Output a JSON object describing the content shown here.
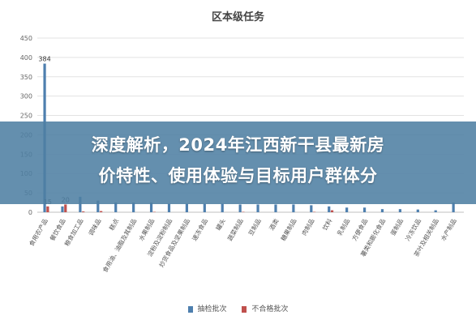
{
  "overlay": {
    "line1": "深度解析，2024年江西新干县最新房",
    "line2": "价特性、使用体验与目标用户群体分"
  },
  "colors": {
    "series1": "#4e7fae",
    "series2": "#c0504d",
    "overlay": "#4e7fa3"
  },
  "chart_data": {
    "type": "bar",
    "title": "区本级任务",
    "ylim": [
      0,
      450
    ],
    "yticks": [
      0,
      50,
      100,
      150,
      200,
      250,
      300,
      350,
      400,
      450
    ],
    "grid": true,
    "legend_position": "bottom",
    "categories": [
      "食用农产品",
      "餐饮食品",
      "粮食加工品",
      "调味品",
      "糕点",
      "食用油、油脂及其制品",
      "水果制品",
      "淀粉及淀粉制品",
      "炒货食品及坚果制品",
      "速冻食品",
      "罐头",
      "蔬菜制品",
      "豆制品",
      "酒类",
      "糖果制品",
      "肉制品",
      "饮料",
      "乳制品",
      "方便食品",
      "薯类和膨化食品",
      "蛋制品",
      "冷冻饮品",
      "茶叶及相关制品",
      "水产制品"
    ],
    "series": [
      {
        "name": "抽检批次",
        "values": [
          384,
          15,
          40,
          30,
          25,
          25,
          25,
          22,
          22,
          22,
          22,
          20,
          20,
          20,
          20,
          18,
          15,
          12,
          12,
          8,
          8,
          7,
          5,
          25
        ]
      },
      {
        "name": "不合格批次",
        "values": [
          15,
          20,
          2,
          3,
          0,
          0,
          1,
          0,
          0,
          0,
          0,
          1,
          0,
          0,
          0,
          1,
          5,
          0,
          0,
          0,
          0,
          0,
          0,
          0
        ]
      }
    ],
    "data_labels": [
      {
        "series": 0,
        "index": 0,
        "text": "384"
      },
      {
        "series": 1,
        "index": 0,
        "text": "15"
      },
      {
        "series": 1,
        "index": 1,
        "text": "20"
      }
    ]
  }
}
